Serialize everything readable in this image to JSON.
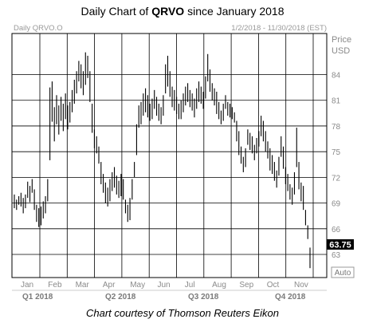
{
  "title": {
    "prefix": "Daily Chart of ",
    "ticker": "QRVO",
    "suffix": " since January 2018"
  },
  "credit": "Chart courtesy of Thomson Reuters Eikon",
  "chart_data": {
    "type": "ohlc",
    "instrument_label": "Daily QRVO.O",
    "date_range_label": "1/2/2018 - 11/30/2018 (EST)",
    "ylabel": "Price",
    "yunit": "USD",
    "ylim": [
      60.3,
      88.8
    ],
    "yticks": [
      84,
      81,
      78,
      75,
      72,
      69,
      66,
      63
    ],
    "last_price": "63.75",
    "scale_mode": "Auto",
    "x_month_labels": [
      "Jan",
      "Feb",
      "Mar",
      "Apr",
      "May",
      "Jun",
      "Jul",
      "Aug",
      "Sep",
      "Oct",
      "Nov"
    ],
    "x_quarter_labels": [
      "Q1 2018",
      "Q2 2018",
      "Q3 2018",
      "Q4 2018"
    ],
    "grid": true,
    "colors": {
      "bars": "#000000",
      "grid": "#000000",
      "last_price_box": "#000000",
      "last_price_text": "#ffffff"
    },
    "series": [
      [
        70.0,
        68.4
      ],
      [
        69.4,
        68.2
      ],
      [
        69.8,
        68.8
      ],
      [
        70.2,
        68.6
      ],
      [
        69.6,
        67.8
      ],
      [
        70.0,
        68.4
      ],
      [
        71.5,
        69.6
      ],
      [
        71.0,
        69.1
      ],
      [
        71.8,
        70.2
      ],
      [
        70.6,
        68.2
      ],
      [
        68.8,
        66.8
      ],
      [
        68.4,
        66.2
      ],
      [
        68.6,
        66.4
      ],
      [
        69.2,
        67.2
      ],
      [
        69.8,
        67.8
      ],
      [
        71.8,
        69.2
      ],
      [
        82.5,
        74.0
      ],
      [
        83.2,
        78.5
      ],
      [
        80.2,
        76.2
      ],
      [
        81.6,
        78.2
      ],
      [
        80.4,
        77.0
      ],
      [
        81.4,
        78.6
      ],
      [
        80.6,
        77.4
      ],
      [
        81.8,
        78.8
      ],
      [
        80.4,
        77.6
      ],
      [
        80.8,
        78.4
      ],
      [
        82.2,
        79.6
      ],
      [
        83.4,
        80.6
      ],
      [
        84.4,
        81.8
      ],
      [
        85.6,
        83.2
      ],
      [
        85.2,
        82.4
      ],
      [
        84.4,
        81.6
      ],
      [
        86.6,
        82.8
      ],
      [
        86.2,
        83.6
      ],
      [
        84.4,
        80.8
      ],
      [
        80.6,
        77.2
      ],
      [
        77.6,
        75.4
      ],
      [
        76.8,
        74.8
      ],
      [
        75.6,
        73.6
      ],
      [
        73.8,
        71.2
      ],
      [
        72.4,
        70.2
      ],
      [
        71.4,
        69.0
      ],
      [
        70.8,
        68.6
      ],
      [
        71.8,
        69.2
      ],
      [
        72.6,
        70.4
      ],
      [
        73.2,
        70.8
      ],
      [
        72.2,
        70.0
      ],
      [
        71.6,
        69.6
      ],
      [
        72.4,
        69.8
      ],
      [
        71.8,
        69.4
      ],
      [
        69.4,
        67.8
      ],
      [
        68.8,
        66.8
      ],
      [
        69.6,
        67.0
      ],
      [
        71.8,
        69.4
      ],
      [
        73.8,
        72.0
      ],
      [
        78.2,
        74.6
      ],
      [
        80.4,
        77.8
      ],
      [
        80.8,
        78.2
      ],
      [
        81.8,
        79.2
      ],
      [
        82.4,
        79.6
      ],
      [
        81.6,
        79.0
      ],
      [
        80.6,
        78.6
      ],
      [
        81.2,
        78.8
      ],
      [
        82.2,
        80.0
      ],
      [
        81.4,
        79.2
      ],
      [
        80.6,
        78.6
      ],
      [
        80.2,
        78.2
      ],
      [
        81.6,
        79.2
      ],
      [
        85.2,
        81.8
      ],
      [
        86.2,
        82.6
      ],
      [
        84.4,
        81.4
      ],
      [
        82.6,
        80.2
      ],
      [
        82.2,
        79.8
      ],
      [
        81.4,
        79.4
      ],
      [
        80.6,
        78.8
      ],
      [
        81.0,
        78.8
      ],
      [
        81.8,
        79.6
      ],
      [
        82.6,
        80.4
      ],
      [
        83.0,
        80.8
      ],
      [
        82.2,
        80.2
      ],
      [
        81.8,
        79.8
      ],
      [
        81.2,
        79.0
      ],
      [
        82.4,
        80.0
      ],
      [
        83.2,
        80.8
      ],
      [
        82.6,
        80.6
      ],
      [
        82.0,
        80.0
      ],
      [
        83.8,
        81.2
      ],
      [
        86.4,
        83.2
      ],
      [
        84.6,
        82.0
      ],
      [
        83.0,
        81.0
      ],
      [
        82.4,
        80.4
      ],
      [
        82.0,
        79.4
      ],
      [
        80.8,
        78.8
      ],
      [
        79.8,
        78.2
      ],
      [
        80.6,
        78.6
      ],
      [
        81.6,
        80.0
      ],
      [
        80.8,
        79.2
      ],
      [
        80.6,
        79.0
      ],
      [
        80.2,
        78.8
      ],
      [
        79.6,
        78.4
      ],
      [
        78.6,
        76.2
      ],
      [
        77.4,
        74.6
      ],
      [
        75.6,
        73.6
      ],
      [
        74.4,
        72.6
      ],
      [
        75.4,
        73.2
      ],
      [
        77.6,
        75.8
      ],
      [
        77.2,
        75.2
      ],
      [
        76.8,
        74.8
      ],
      [
        75.8,
        74.0
      ],
      [
        76.6,
        74.8
      ],
      [
        77.4,
        75.6
      ],
      [
        79.2,
        76.8
      ],
      [
        78.6,
        76.2
      ],
      [
        77.4,
        75.0
      ],
      [
        76.2,
        74.2
      ],
      [
        75.4,
        72.8
      ],
      [
        74.6,
        72.4
      ],
      [
        73.8,
        71.6
      ],
      [
        72.8,
        70.8
      ],
      [
        74.4,
        72.2
      ],
      [
        76.8,
        74.4
      ],
      [
        75.6,
        73.0
      ],
      [
        73.2,
        71.2
      ],
      [
        72.4,
        70.4
      ],
      [
        71.2,
        69.4
      ],
      [
        70.8,
        68.8
      ],
      [
        72.6,
        70.0
      ],
      [
        77.8,
        73.2
      ],
      [
        73.8,
        70.6
      ],
      [
        71.4,
        69.2
      ],
      [
        71.0,
        68.2
      ],
      [
        68.2,
        66.4
      ],
      [
        66.4,
        64.8
      ],
      [
        63.8,
        61.4
      ]
    ]
  }
}
